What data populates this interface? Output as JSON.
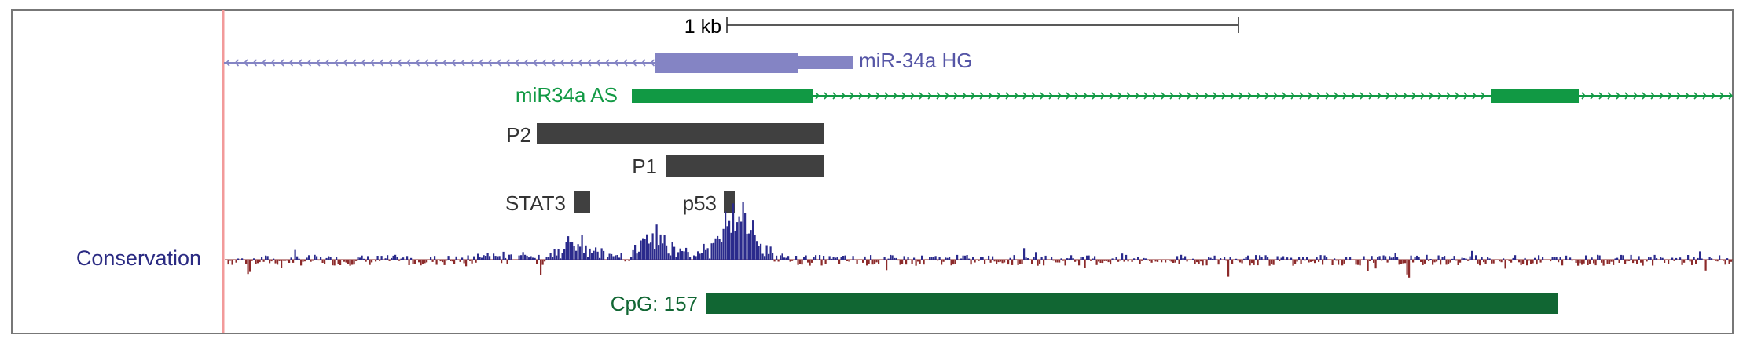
{
  "scale_bar": {
    "label": "1 kb"
  },
  "tracks": {
    "mir34a_hg": {
      "label": "miR-34a HG",
      "color": "#8484c4",
      "strand": "minus"
    },
    "mir34a_as": {
      "label": "miR34a AS",
      "color": "#119944",
      "strand": "plus"
    },
    "p2": {
      "label": "P2",
      "color": "#404040"
    },
    "p1": {
      "label": "P1",
      "color": "#404040"
    },
    "stat3": {
      "label": "STAT3",
      "color": "#404040"
    },
    "p53": {
      "label": "p53",
      "color": "#404040"
    },
    "cpg": {
      "label": "CpG: 157",
      "color": "#116633"
    }
  },
  "conservation": {
    "label": "Conservation",
    "label_color": "#2a2a82",
    "positive_color": "#2a2a8c",
    "negative_color": "#8c2a2a"
  },
  "colors": {
    "highlight_line": "#f29a9a",
    "frame": "#777777"
  }
}
